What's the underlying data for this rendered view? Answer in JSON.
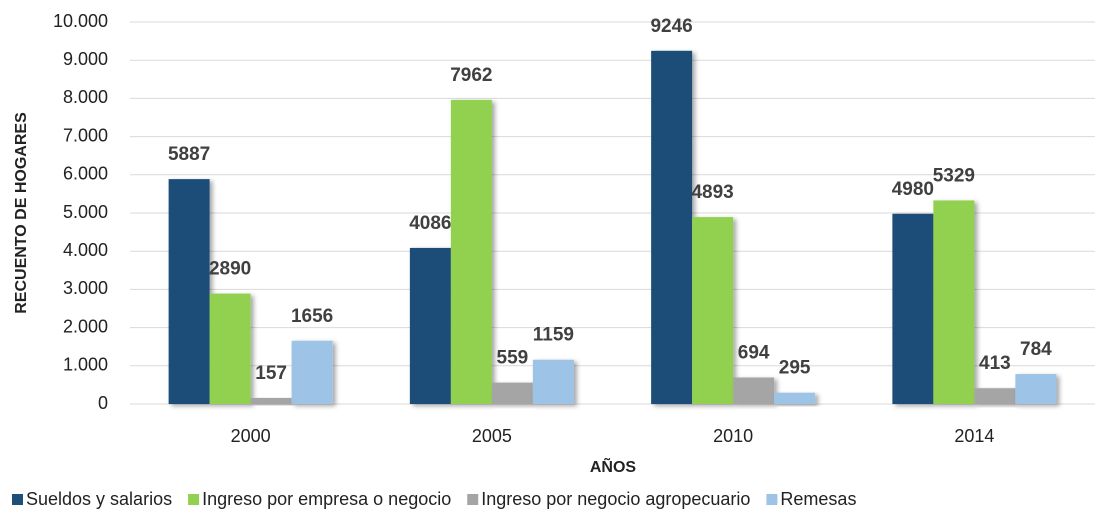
{
  "chart_data": {
    "type": "bar",
    "categories": [
      "2000",
      "2005",
      "2010",
      "2014"
    ],
    "series": [
      {
        "name": "Sueldos y salarios",
        "color": "#1f4e79",
        "values": [
          5887,
          4086,
          9246,
          4980
        ]
      },
      {
        "name": "Ingreso por empresa o negocio",
        "color": "#92d050",
        "values": [
          2890,
          7962,
          4893,
          5329
        ]
      },
      {
        "name": "Ingreso por negocio agropecuario",
        "color": "#a5a5a5",
        "values": [
          157,
          559,
          694,
          413
        ]
      },
      {
        "name": "Remesas",
        "color": "#9dc3e6",
        "values": [
          1656,
          1159,
          295,
          784
        ]
      }
    ],
    "ylim": [
      0,
      10000
    ],
    "yticks": [
      0,
      {
        "value": 1000,
        "label": "1.000"
      },
      {
        "value": 2000,
        "label": "2.000"
      },
      {
        "value": 3000,
        "label": "3.000"
      },
      {
        "value": 4000,
        "label": "4.000"
      },
      {
        "value": 5000,
        "label": "5.000"
      },
      {
        "value": 6000,
        "label": "6.000"
      },
      {
        "value": 7000,
        "label": "7.000"
      },
      {
        "value": 8000,
        "label": "8.000"
      },
      {
        "value": 9000,
        "label": "9.000"
      },
      {
        "value": 10000,
        "label": "10.000"
      }
    ],
    "grid": true,
    "xlabel": "AÑOS",
    "ylabel": "RECUENTO DE HOGARES",
    "legend": "bottom"
  }
}
